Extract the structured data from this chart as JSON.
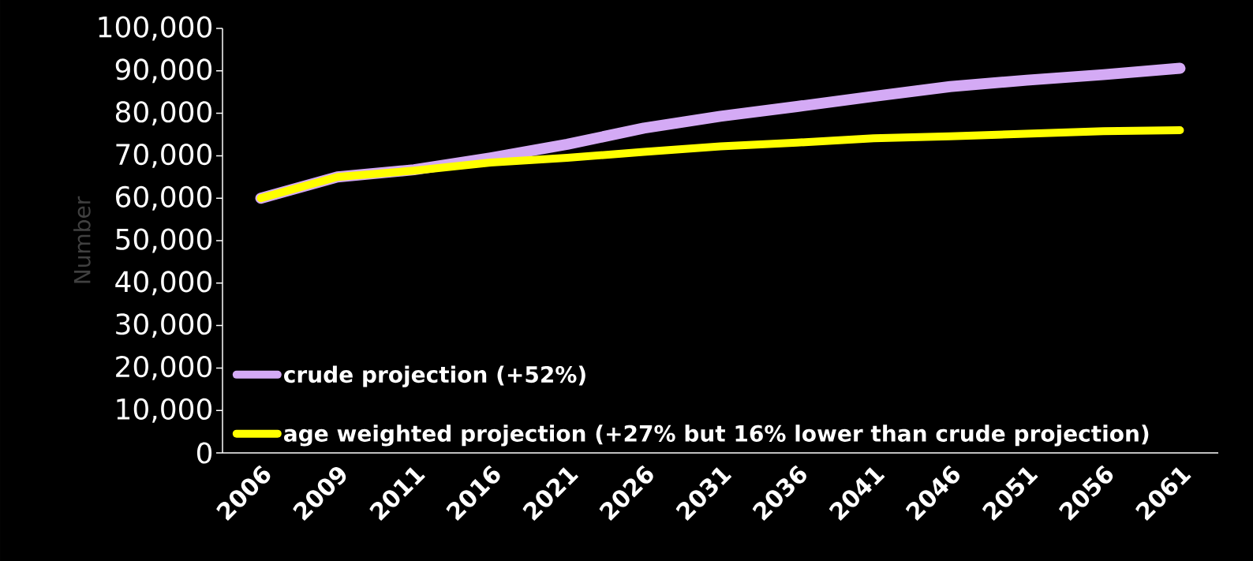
{
  "chart_data": {
    "type": "line",
    "ylabel": "Number",
    "categories": [
      "2006",
      "2009",
      "2011",
      "2016",
      "2021",
      "2026",
      "2031",
      "2036",
      "2041",
      "2046",
      "2051",
      "2056",
      "2061"
    ],
    "series": [
      {
        "name": "crude projection (+52%)",
        "color": "#d4aaf5",
        "values": [
          60000,
          65000,
          66700,
          69500,
          72700,
          76500,
          79300,
          81600,
          84000,
          86300,
          87800,
          89100,
          90600
        ]
      },
      {
        "name": "age weighted projection (+27% but 16% lower than crude projection)",
        "color": "#ffff00",
        "values": [
          60000,
          65000,
          66500,
          68400,
          69500,
          70900,
          72200,
          73100,
          74100,
          74600,
          75200,
          75800,
          76000
        ]
      }
    ],
    "ylim": [
      0,
      100000
    ],
    "yticks": [
      {
        "value": 0,
        "label": "0"
      },
      {
        "value": 10000,
        "label": "10,000"
      },
      {
        "value": 20000,
        "label": "20,000"
      },
      {
        "value": 30000,
        "label": "30,000"
      },
      {
        "value": 40000,
        "label": "40,000"
      },
      {
        "value": 50000,
        "label": "50,000"
      },
      {
        "value": 60000,
        "label": "60,000"
      },
      {
        "value": 70000,
        "label": "70,000"
      },
      {
        "value": 80000,
        "label": "80,000"
      },
      {
        "value": 90000,
        "label": "90,000"
      },
      {
        "value": 100000,
        "label": "100,000"
      }
    ],
    "legend": "bottom left",
    "grid": false,
    "marker": "none",
    "line_style": "solid"
  }
}
